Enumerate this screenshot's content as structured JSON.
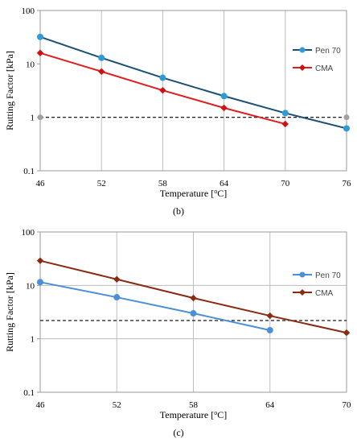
{
  "chart_data": [
    {
      "type": "line",
      "panel_label": "(b)",
      "xlabel": "Temperature [",
      "xlabel_sup": "o",
      "xlabel_tail": "C]",
      "ylabel": "Rutting Factor [kPa]",
      "x_ticks": [
        "46",
        "52",
        "58",
        "64",
        "70",
        "76"
      ],
      "y_ticks": [
        "0.1",
        "1",
        "10",
        "100"
      ],
      "xlim": [
        46,
        76
      ],
      "ylim": [
        0.1,
        100
      ],
      "y_scale": "log",
      "grid": "vertical",
      "legend_position": "right",
      "series": [
        {
          "name": "Pen 70",
          "color": "#1a4f78",
          "marker_color": "#2e9bd6",
          "marker": "circle",
          "x": [
            46,
            52,
            58,
            64,
            70,
            76
          ],
          "y": [
            32,
            13,
            5.5,
            2.5,
            1.2,
            0.62
          ]
        },
        {
          "name": "CMA",
          "color": "#e01e1e",
          "marker_color": "#d01010",
          "marker": "diamond",
          "x": [
            46,
            52,
            58,
            64,
            70
          ],
          "y": [
            16,
            7.2,
            3.2,
            1.5,
            0.75
          ]
        }
      ],
      "reference_line": {
        "y": 1,
        "style": "dashed",
        "color": "#000000",
        "end_marker_color": "#a0a0a0"
      }
    },
    {
      "type": "line",
      "panel_label": "(c)",
      "xlabel": "Temperature [",
      "xlabel_sup": "o",
      "xlabel_tail": "C]",
      "ylabel": "Rutting Factor [kPa]",
      "x_ticks": [
        "46",
        "52",
        "58",
        "64",
        "70"
      ],
      "y_ticks": [
        "0.1",
        "1",
        "10",
        "100"
      ],
      "xlim": [
        46,
        70
      ],
      "ylim": [
        0.1,
        100
      ],
      "y_scale": "log",
      "grid": "both",
      "legend_position": "right",
      "series": [
        {
          "name": "Pen 70",
          "color": "#4a8fd8",
          "marker_color": "#4a8fd8",
          "marker": "circle",
          "x": [
            46,
            52,
            58,
            64
          ],
          "y": [
            11.5,
            6,
            3,
            1.45
          ]
        },
        {
          "name": "CMA",
          "color": "#8b2a10",
          "marker_color": "#8b2a10",
          "marker": "diamond",
          "x": [
            46,
            52,
            58,
            64,
            70
          ],
          "y": [
            29,
            13,
            5.8,
            2.7,
            1.3
          ]
        }
      ],
      "reference_line": {
        "y": 2.2,
        "style": "dashed",
        "color": "#000000"
      }
    }
  ]
}
